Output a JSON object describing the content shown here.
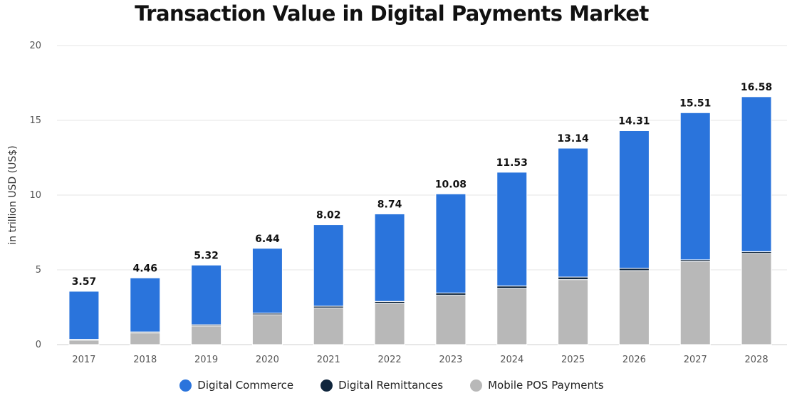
{
  "chart_data": {
    "type": "bar",
    "stacked": true,
    "title": "Transaction Value in Digital Payments Market",
    "xlabel": "",
    "ylabel": "in trillion USD (US$)",
    "ylim": [
      0,
      20
    ],
    "yticks": [
      0,
      5,
      10,
      15,
      20
    ],
    "grid": true,
    "legend_position": "bottom",
    "categories": [
      "2017",
      "2018",
      "2019",
      "2020",
      "2021",
      "2022",
      "2023",
      "2024",
      "2025",
      "2026",
      "2027",
      "2028"
    ],
    "totals": [
      "3.57",
      "4.46",
      "5.32",
      "6.44",
      "8.02",
      "8.74",
      "10.08",
      "11.53",
      "13.14",
      "14.31",
      "15.51",
      "16.58"
    ],
    "series": [
      {
        "name": "Mobile POS Payments",
        "color": "#b8b8b8",
        "values": [
          0.3,
          0.78,
          1.25,
          2.0,
          2.45,
          2.75,
          3.3,
          3.75,
          4.35,
          4.95,
          5.55,
          6.1
        ]
      },
      {
        "name": "Digital Remittances",
        "color": "#10263d",
        "values": [
          0.05,
          0.07,
          0.08,
          0.1,
          0.12,
          0.14,
          0.15,
          0.17,
          0.17,
          0.15,
          0.12,
          0.12
        ]
      },
      {
        "name": "Digital Commerce",
        "color": "#2a74dc",
        "values": [
          3.22,
          3.61,
          3.99,
          4.34,
          5.45,
          5.85,
          6.63,
          7.61,
          8.62,
          9.21,
          9.84,
          10.36
        ]
      }
    ],
    "legend_order": [
      "Digital Commerce",
      "Digital Remittances",
      "Mobile POS Payments"
    ]
  }
}
